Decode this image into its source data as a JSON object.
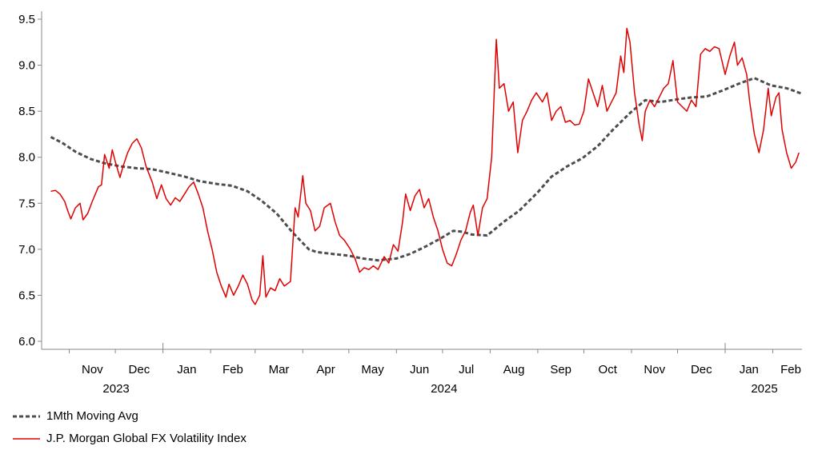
{
  "chart_data": {
    "type": "line",
    "ylim": [
      6.0,
      9.5
    ],
    "yticks": [
      "6.0",
      "6.5",
      "7.0",
      "7.5",
      "8.0",
      "8.5",
      "9.0",
      "9.5"
    ],
    "month_labels": [
      "Nov",
      "Dec",
      "Jan",
      "Feb",
      "Mar",
      "Apr",
      "May",
      "Jun",
      "Jul",
      "Aug",
      "Sep",
      "Oct",
      "Nov",
      "Dec",
      "Jan",
      "Feb"
    ],
    "year_labels": [
      "2023",
      "2024",
      "2025"
    ],
    "grid": false,
    "legend_position": "bottom-left",
    "series": [
      {
        "name": "1Mth Moving Avg",
        "color": "#4d4d4d",
        "style": "dashed",
        "points": [
          [
            "2023-10-20",
            8.22
          ],
          [
            "2023-10-28",
            8.15
          ],
          [
            "2023-11-05",
            8.06
          ],
          [
            "2023-11-15",
            7.98
          ],
          [
            "2023-11-25",
            7.93
          ],
          [
            "2023-12-05",
            7.9
          ],
          [
            "2023-12-15",
            7.88
          ],
          [
            "2023-12-25",
            7.87
          ],
          [
            "2024-01-05",
            7.83
          ],
          [
            "2024-01-15",
            7.79
          ],
          [
            "2024-01-25",
            7.74
          ],
          [
            "2024-02-05",
            7.71
          ],
          [
            "2024-02-15",
            7.69
          ],
          [
            "2024-02-25",
            7.63
          ],
          [
            "2024-03-05",
            7.53
          ],
          [
            "2024-03-15",
            7.39
          ],
          [
            "2024-03-25",
            7.19
          ],
          [
            "2024-04-05",
            7.0
          ],
          [
            "2024-04-10",
            6.97
          ],
          [
            "2024-04-20",
            6.95
          ],
          [
            "2024-05-01",
            6.93
          ],
          [
            "2024-05-10",
            6.9
          ],
          [
            "2024-05-20",
            6.88
          ],
          [
            "2024-06-01",
            6.9
          ],
          [
            "2024-06-10",
            6.95
          ],
          [
            "2024-06-20",
            7.03
          ],
          [
            "2024-06-30",
            7.12
          ],
          [
            "2024-07-08",
            7.2
          ],
          [
            "2024-07-14",
            7.19
          ],
          [
            "2024-07-20",
            7.16
          ],
          [
            "2024-07-30",
            7.15
          ],
          [
            "2024-08-10",
            7.3
          ],
          [
            "2024-08-20",
            7.42
          ],
          [
            "2024-09-01",
            7.62
          ],
          [
            "2024-09-10",
            7.79
          ],
          [
            "2024-09-20",
            7.9
          ],
          [
            "2024-09-30",
            7.99
          ],
          [
            "2024-10-10",
            8.12
          ],
          [
            "2024-10-20",
            8.3
          ],
          [
            "2024-10-31",
            8.48
          ],
          [
            "2024-11-10",
            8.62
          ],
          [
            "2024-11-20",
            8.6
          ],
          [
            "2024-12-01",
            8.63
          ],
          [
            "2024-12-10",
            8.65
          ],
          [
            "2024-12-20",
            8.66
          ],
          [
            "2024-12-31",
            8.73
          ],
          [
            "2025-01-10",
            8.8
          ],
          [
            "2025-01-20",
            8.86
          ],
          [
            "2025-01-31",
            8.78
          ],
          [
            "2025-02-10",
            8.75
          ],
          [
            "2025-02-20",
            8.69
          ]
        ]
      },
      {
        "name": "J.P. Morgan Global FX Volatility Index",
        "color": "#e00000",
        "style": "solid",
        "points": [
          [
            "2023-10-20",
            7.63
          ],
          [
            "2023-10-23",
            7.64
          ],
          [
            "2023-10-26",
            7.6
          ],
          [
            "2023-10-29",
            7.52
          ],
          [
            "2023-10-31",
            7.42
          ],
          [
            "2023-11-02",
            7.33
          ],
          [
            "2023-11-05",
            7.45
          ],
          [
            "2023-11-08",
            7.5
          ],
          [
            "2023-11-10",
            7.32
          ],
          [
            "2023-11-13",
            7.39
          ],
          [
            "2023-11-16",
            7.52
          ],
          [
            "2023-11-20",
            7.68
          ],
          [
            "2023-11-22",
            7.7
          ],
          [
            "2023-11-24",
            8.03
          ],
          [
            "2023-11-27",
            7.88
          ],
          [
            "2023-11-29",
            8.08
          ],
          [
            "2023-12-01",
            7.95
          ],
          [
            "2023-12-04",
            7.78
          ],
          [
            "2023-12-06",
            7.9
          ],
          [
            "2023-12-09",
            8.05
          ],
          [
            "2023-12-12",
            8.15
          ],
          [
            "2023-12-15",
            8.2
          ],
          [
            "2023-12-18",
            8.1
          ],
          [
            "2023-12-21",
            7.9
          ],
          [
            "2023-12-25",
            7.73
          ],
          [
            "2023-12-28",
            7.55
          ],
          [
            "2023-12-31",
            7.7
          ],
          [
            "2024-01-03",
            7.55
          ],
          [
            "2024-01-06",
            7.48
          ],
          [
            "2024-01-09",
            7.56
          ],
          [
            "2024-01-12",
            7.52
          ],
          [
            "2024-01-15",
            7.6
          ],
          [
            "2024-01-18",
            7.68
          ],
          [
            "2024-01-21",
            7.73
          ],
          [
            "2024-01-24",
            7.6
          ],
          [
            "2024-01-27",
            7.45
          ],
          [
            "2024-01-30",
            7.2
          ],
          [
            "2024-02-02",
            7.0
          ],
          [
            "2024-02-05",
            6.75
          ],
          [
            "2024-02-08",
            6.6
          ],
          [
            "2024-02-11",
            6.48
          ],
          [
            "2024-02-13",
            6.62
          ],
          [
            "2024-02-16",
            6.5
          ],
          [
            "2024-02-19",
            6.6
          ],
          [
            "2024-02-22",
            6.72
          ],
          [
            "2024-02-25",
            6.62
          ],
          [
            "2024-02-28",
            6.45
          ],
          [
            "2024-03-01",
            6.4
          ],
          [
            "2024-03-04",
            6.5
          ],
          [
            "2024-03-06",
            6.93
          ],
          [
            "2024-03-08",
            6.48
          ],
          [
            "2024-03-11",
            6.58
          ],
          [
            "2024-03-14",
            6.55
          ],
          [
            "2024-03-17",
            6.68
          ],
          [
            "2024-03-20",
            6.6
          ],
          [
            "2024-03-24",
            6.65
          ],
          [
            "2024-03-27",
            7.45
          ],
          [
            "2024-03-29",
            7.35
          ],
          [
            "2024-04-01",
            7.8
          ],
          [
            "2024-04-03",
            7.5
          ],
          [
            "2024-04-06",
            7.42
          ],
          [
            "2024-04-09",
            7.2
          ],
          [
            "2024-04-12",
            7.25
          ],
          [
            "2024-04-15",
            7.45
          ],
          [
            "2024-04-19",
            7.5
          ],
          [
            "2024-04-22",
            7.3
          ],
          [
            "2024-04-25",
            7.15
          ],
          [
            "2024-04-28",
            7.1
          ],
          [
            "2024-05-02",
            7.0
          ],
          [
            "2024-05-05",
            6.9
          ],
          [
            "2024-05-08",
            6.75
          ],
          [
            "2024-05-11",
            6.8
          ],
          [
            "2024-05-14",
            6.78
          ],
          [
            "2024-05-17",
            6.82
          ],
          [
            "2024-05-20",
            6.78
          ],
          [
            "2024-05-24",
            6.92
          ],
          [
            "2024-05-27",
            6.85
          ],
          [
            "2024-05-30",
            7.05
          ],
          [
            "2024-06-02",
            6.98
          ],
          [
            "2024-06-05",
            7.3
          ],
          [
            "2024-06-07",
            7.6
          ],
          [
            "2024-06-10",
            7.42
          ],
          [
            "2024-06-13",
            7.58
          ],
          [
            "2024-06-16",
            7.65
          ],
          [
            "2024-06-19",
            7.45
          ],
          [
            "2024-06-22",
            7.55
          ],
          [
            "2024-06-25",
            7.35
          ],
          [
            "2024-06-28",
            7.2
          ],
          [
            "2024-07-01",
            7.0
          ],
          [
            "2024-07-04",
            6.85
          ],
          [
            "2024-07-07",
            6.82
          ],
          [
            "2024-07-10",
            6.95
          ],
          [
            "2024-07-13",
            7.1
          ],
          [
            "2024-07-16",
            7.2
          ],
          [
            "2024-07-19",
            7.4
          ],
          [
            "2024-07-21",
            7.48
          ],
          [
            "2024-07-24",
            7.15
          ],
          [
            "2024-07-27",
            7.45
          ],
          [
            "2024-07-30",
            7.55
          ],
          [
            "2024-08-02",
            8.0
          ],
          [
            "2024-08-05",
            9.28
          ],
          [
            "2024-08-07",
            8.75
          ],
          [
            "2024-08-10",
            8.8
          ],
          [
            "2024-08-13",
            8.5
          ],
          [
            "2024-08-16",
            8.6
          ],
          [
            "2024-08-19",
            8.05
          ],
          [
            "2024-08-22",
            8.4
          ],
          [
            "2024-08-25",
            8.5
          ],
          [
            "2024-08-28",
            8.62
          ],
          [
            "2024-08-31",
            8.7
          ],
          [
            "2024-09-04",
            8.6
          ],
          [
            "2024-09-07",
            8.7
          ],
          [
            "2024-09-10",
            8.4
          ],
          [
            "2024-09-13",
            8.5
          ],
          [
            "2024-09-16",
            8.55
          ],
          [
            "2024-09-19",
            8.38
          ],
          [
            "2024-09-22",
            8.4
          ],
          [
            "2024-09-25",
            8.35
          ],
          [
            "2024-09-28",
            8.36
          ],
          [
            "2024-10-01",
            8.5
          ],
          [
            "2024-10-04",
            8.85
          ],
          [
            "2024-10-07",
            8.7
          ],
          [
            "2024-10-10",
            8.55
          ],
          [
            "2024-10-13",
            8.78
          ],
          [
            "2024-10-16",
            8.5
          ],
          [
            "2024-10-19",
            8.6
          ],
          [
            "2024-10-22",
            8.7
          ],
          [
            "2024-10-25",
            9.1
          ],
          [
            "2024-10-27",
            8.92
          ],
          [
            "2024-10-29",
            9.4
          ],
          [
            "2024-10-31",
            9.25
          ],
          [
            "2024-11-03",
            8.7
          ],
          [
            "2024-11-06",
            8.35
          ],
          [
            "2024-11-08",
            8.18
          ],
          [
            "2024-11-10",
            8.5
          ],
          [
            "2024-11-13",
            8.62
          ],
          [
            "2024-11-16",
            8.55
          ],
          [
            "2024-11-19",
            8.65
          ],
          [
            "2024-11-22",
            8.75
          ],
          [
            "2024-11-25",
            8.8
          ],
          [
            "2024-11-28",
            9.05
          ],
          [
            "2024-12-01",
            8.6
          ],
          [
            "2024-12-04",
            8.55
          ],
          [
            "2024-12-07",
            8.5
          ],
          [
            "2024-12-10",
            8.62
          ],
          [
            "2024-12-13",
            8.55
          ],
          [
            "2024-12-16",
            9.12
          ],
          [
            "2024-12-19",
            9.18
          ],
          [
            "2024-12-22",
            9.15
          ],
          [
            "2024-12-25",
            9.2
          ],
          [
            "2024-12-28",
            9.18
          ],
          [
            "2025-01-01",
            8.9
          ],
          [
            "2025-01-04",
            9.1
          ],
          [
            "2025-01-07",
            9.25
          ],
          [
            "2025-01-09",
            9.0
          ],
          [
            "2025-01-12",
            9.08
          ],
          [
            "2025-01-15",
            8.9
          ],
          [
            "2025-01-17",
            8.6
          ],
          [
            "2025-01-20",
            8.25
          ],
          [
            "2025-01-23",
            8.05
          ],
          [
            "2025-01-26",
            8.3
          ],
          [
            "2025-01-29",
            8.75
          ],
          [
            "2025-01-31",
            8.45
          ],
          [
            "2025-02-03",
            8.65
          ],
          [
            "2025-02-05",
            8.7
          ],
          [
            "2025-02-07",
            8.3
          ],
          [
            "2025-02-10",
            8.05
          ],
          [
            "2025-02-13",
            7.88
          ],
          [
            "2025-02-16",
            7.95
          ],
          [
            "2025-02-18",
            8.05
          ]
        ]
      }
    ]
  }
}
